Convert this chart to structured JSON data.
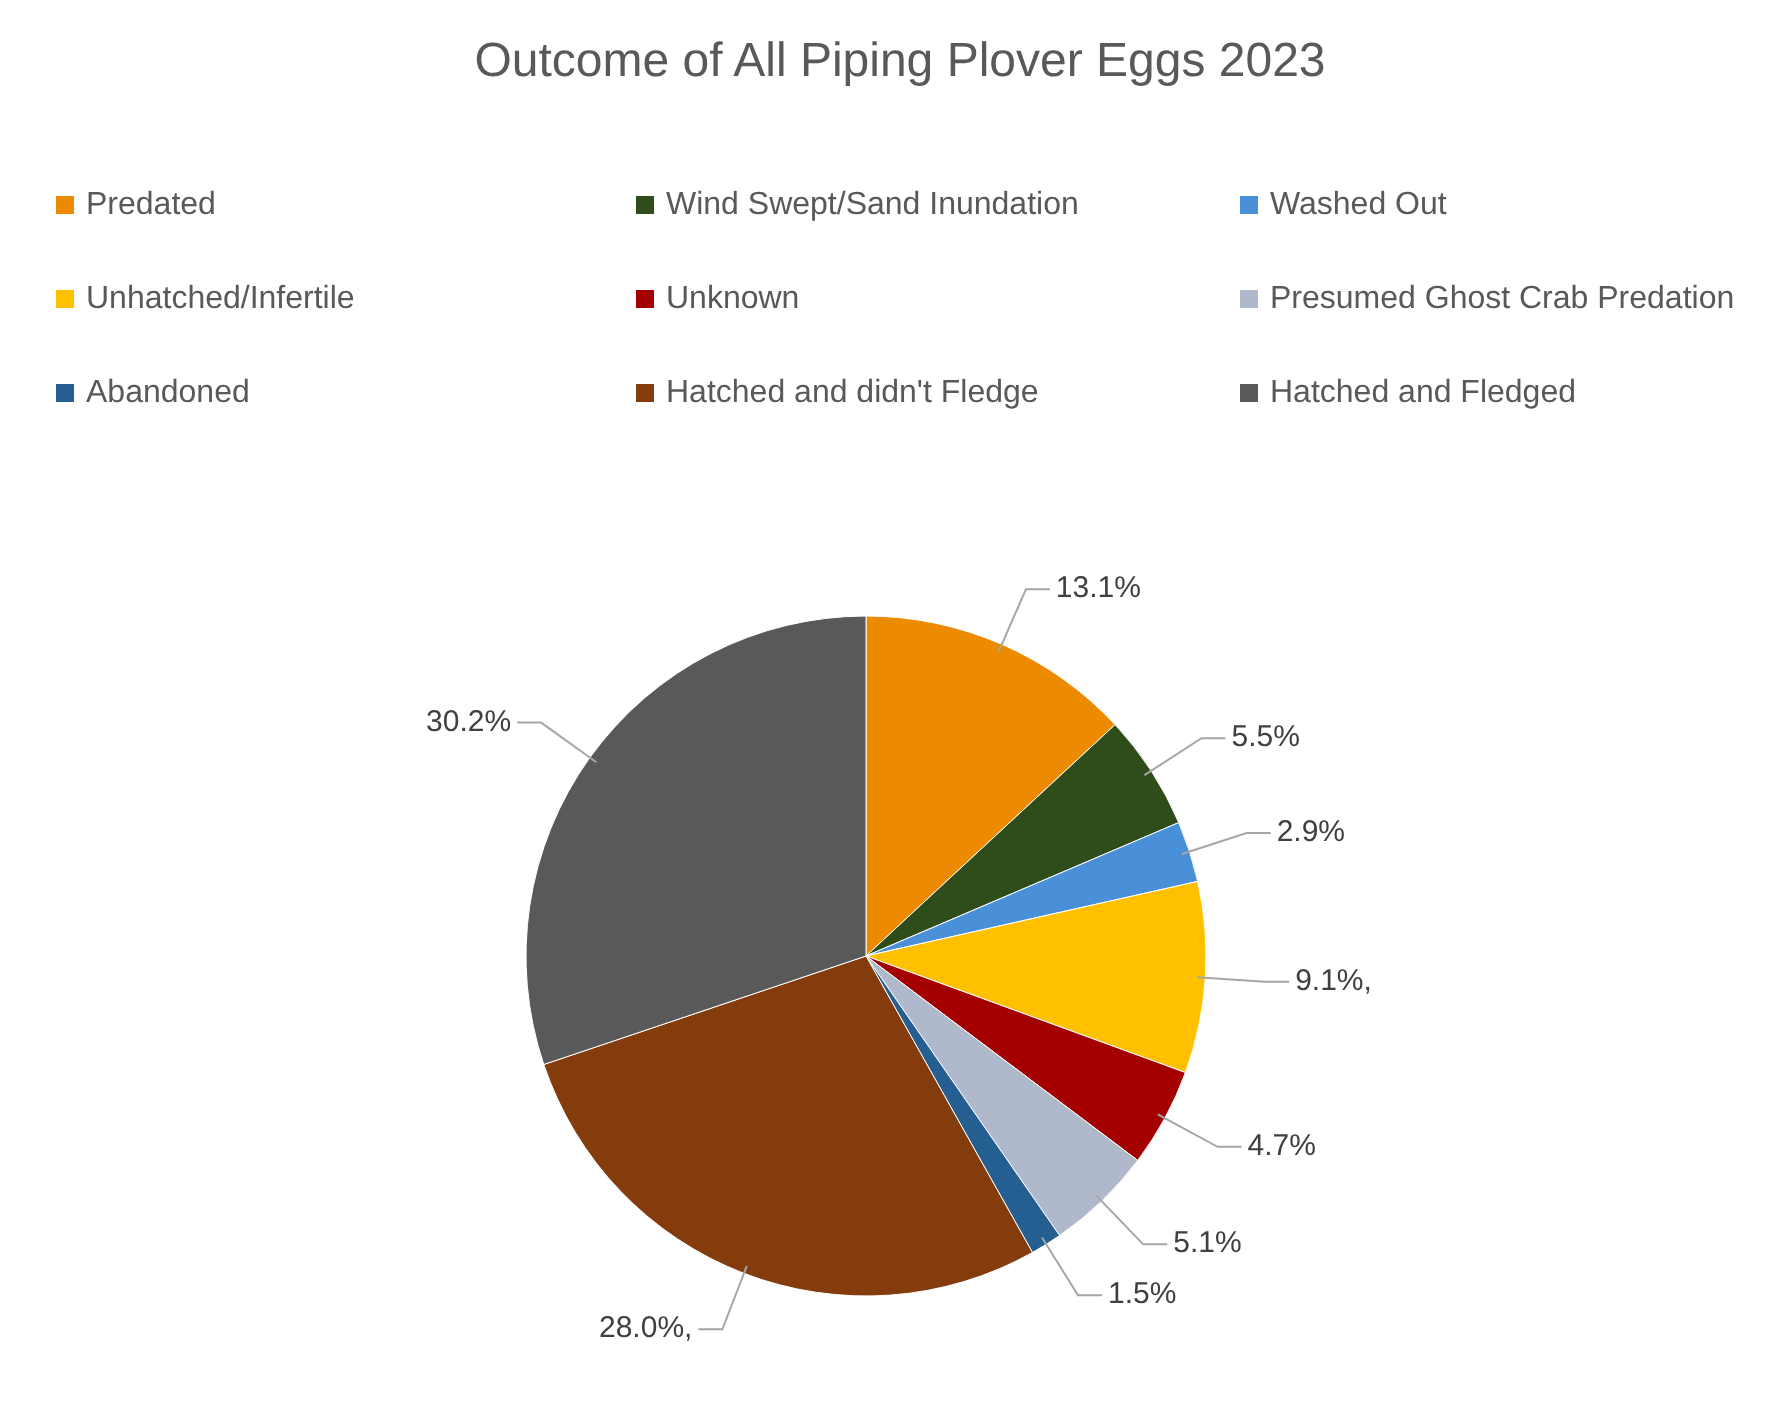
{
  "chart_data": {
    "type": "pie",
    "title": "Outcome of All Piping Plover Eggs 2023",
    "categories": [
      "Predated",
      "Wind Swept/Sand Inundation",
      "Washed Out",
      "Unhatched/Infertile",
      "Unknown",
      "Presumed Ghost Crab Predation",
      "Abandoned",
      "Hatched and didn't Fledge",
      "Hatched and Fledged"
    ],
    "values": [
      13.1,
      5.5,
      2.9,
      9.1,
      4.7,
      5.1,
      1.5,
      28.0,
      30.2
    ],
    "colors": [
      "#ed8b00",
      "#2e4d1a",
      "#4a90d9",
      "#ffc000",
      "#a50000",
      "#b0b8cc",
      "#255e91",
      "#843c0c",
      "#595959"
    ],
    "value_labels": [
      "13.1%",
      "5.5%",
      "2.9%",
      "9.1%,",
      "4.7%",
      "5.1%",
      "1.5%",
      "28.0%,",
      "30.2%"
    ],
    "legend": "top"
  }
}
